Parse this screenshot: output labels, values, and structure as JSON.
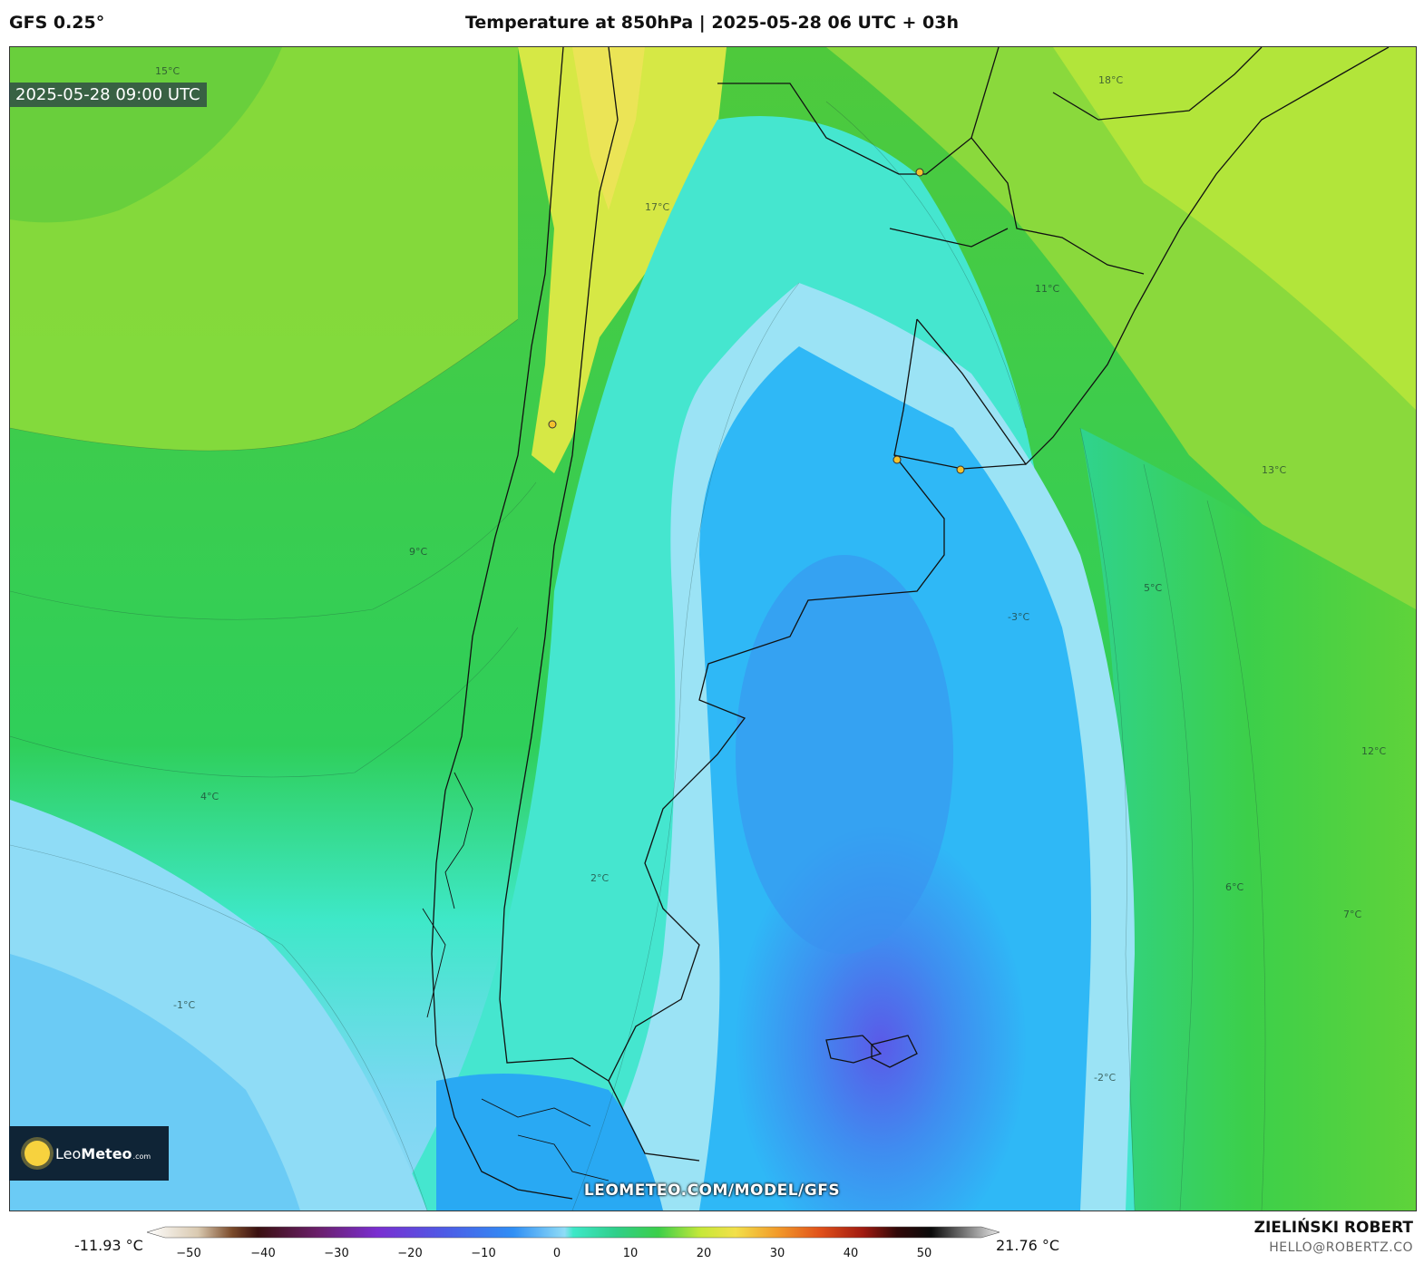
{
  "header": {
    "model": "GFS 0.25°",
    "title": "Temperature at 850hPa | 2025-05-28 06 UTC + 03h"
  },
  "map": {
    "valid_time": "2025-05-28 09:00 UTC",
    "website": "LEOMETEO.COM/MODEL/GFS",
    "logo": {
      "leo": "Leo",
      "meteo": "Meteo",
      "com": ".com"
    },
    "isotherm_labels": [
      "-3°C",
      "-2°C",
      "-1°C",
      "2°C",
      "4°C",
      "6°C",
      "9°C",
      "11°C",
      "13°C",
      "15°C",
      "17°C",
      "18°C",
      "12°C",
      "7°C",
      "5°C"
    ]
  },
  "colorbar": {
    "min_label": "-11.93 °C",
    "max_label": "21.76 °C",
    "ticks": [
      "−50",
      "−40",
      "−30",
      "−20",
      "−10",
      "0",
      "10",
      "20",
      "30",
      "40",
      "50"
    ]
  },
  "footer": {
    "author": "ZIELIŃSKI ROBERT",
    "email": "HELLO@ROBERTZ.CO"
  },
  "colors": {
    "cold": "#4d5ce6",
    "cool": "#29b6f6",
    "zero": "#3ee8c8",
    "mild": "#22c55e",
    "warm": "#c7e838",
    "hot": "#f2e04a"
  }
}
